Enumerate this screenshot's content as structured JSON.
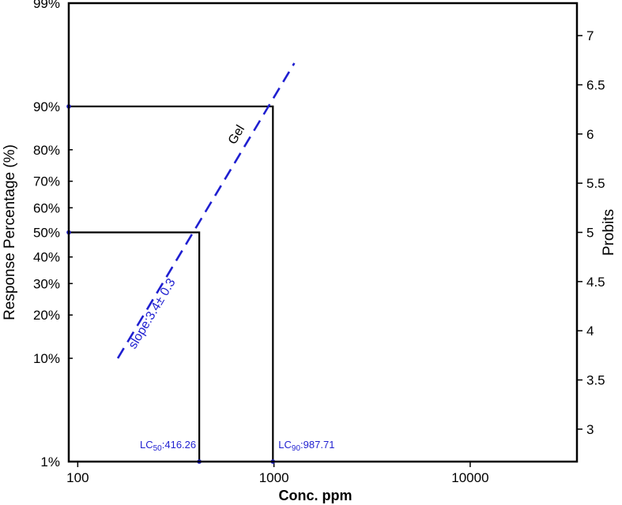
{
  "chart_data": {
    "type": "line",
    "xlabel": "Conc. ppm",
    "ylabel_left": "Response Percentage (%)",
    "ylabel_right": "Probits",
    "x_scale": "log",
    "xlim": [
      90,
      35000
    ],
    "x_ticks": [
      {
        "value": 100,
        "label": "100"
      },
      {
        "value": 1000,
        "label": "1000"
      },
      {
        "value": 10000,
        "label": "10000"
      }
    ],
    "right_ticks": [
      {
        "value": 3,
        "label": "3"
      },
      {
        "value": 3.5,
        "label": "3.5"
      },
      {
        "value": 4,
        "label": "4"
      },
      {
        "value": 4.5,
        "label": "4.5"
      },
      {
        "value": 5,
        "label": "5"
      },
      {
        "value": 5.5,
        "label": "5.5"
      },
      {
        "value": 6,
        "label": "6"
      },
      {
        "value": 6.5,
        "label": "6.5"
      },
      {
        "value": 7,
        "label": "7"
      }
    ],
    "left_ticks": [
      {
        "probit": 2.67,
        "label": "1%"
      },
      {
        "probit": 3.72,
        "label": "10%"
      },
      {
        "probit": 4.16,
        "label": "20%"
      },
      {
        "probit": 4.48,
        "label": "30%"
      },
      {
        "probit": 4.75,
        "label": "40%"
      },
      {
        "probit": 5.0,
        "label": "50%"
      },
      {
        "probit": 5.25,
        "label": "60%"
      },
      {
        "probit": 5.52,
        "label": "70%"
      },
      {
        "probit": 5.84,
        "label": "80%"
      },
      {
        "probit": 6.28,
        "label": "90%"
      },
      {
        "probit": 7.33,
        "label": "99%"
      }
    ],
    "ylim_probit": [
      2.67,
      7.33
    ],
    "series": [
      {
        "name": "Gel",
        "style": "dashed",
        "color": "#1f1fd0",
        "slope_label": "slope:3.4± 0.3",
        "points": [
          {
            "x": 160,
            "probit": 3.72
          },
          {
            "x": 1270,
            "probit": 6.72
          }
        ]
      }
    ],
    "lc_values": [
      {
        "name": "LC50",
        "sub": "50",
        "value_text": ":416.26",
        "x": 416.26,
        "probit": 5.0
      },
      {
        "name": "LC90",
        "sub": "90",
        "value_text": ":987.71",
        "x": 987.71,
        "probit": 6.28
      }
    ],
    "colors": {
      "series": "#1f1fd0",
      "axis": "#000000"
    }
  }
}
